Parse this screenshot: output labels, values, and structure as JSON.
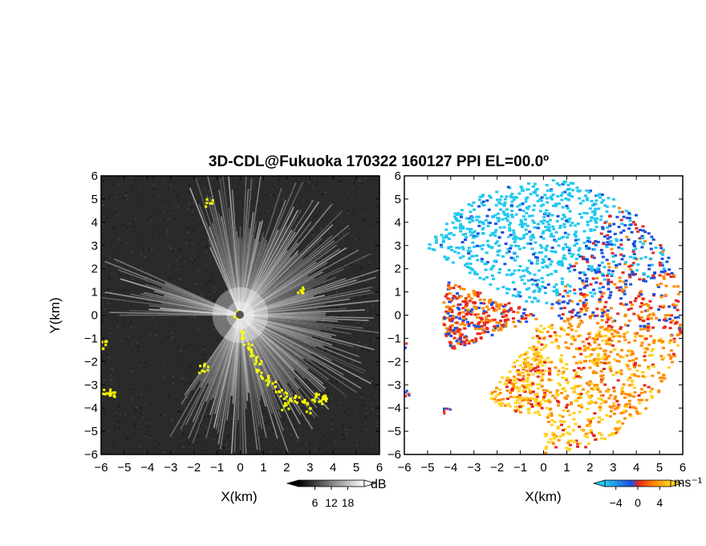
{
  "title": "3D-CDL@Fukuoka 170322 160127 PPI EL=00.0º",
  "chart_data": [
    {
      "type": "heatmap",
      "field": "intensity",
      "xlabel": "X(km)",
      "ylabel": "Y(km)",
      "xlim": [
        -6,
        6
      ],
      "ylim": [
        -6,
        6
      ],
      "xticks": [
        -6,
        -5,
        -4,
        -3,
        -2,
        -1,
        0,
        1,
        2,
        3,
        4,
        5,
        6
      ],
      "yticks": [
        -6,
        -5,
        -4,
        -3,
        -2,
        -1,
        0,
        1,
        2,
        3,
        4,
        5,
        6
      ],
      "xtick_labels": [
        "−6",
        "−5",
        "−4",
        "−3",
        "−2",
        "−1",
        "0",
        "1",
        "2",
        "3",
        "4",
        "5",
        "6"
      ],
      "ytick_labels": [
        "−6",
        "−5",
        "−4",
        "−3",
        "−2",
        "−1",
        "0",
        "1",
        "2",
        "3",
        "4",
        "5",
        "6"
      ],
      "background": "#2a2a2a",
      "echo_color": "#e8e8e8",
      "clutter_color": "#ffff00",
      "colorbar": {
        "unit": "dB",
        "ticks": [
          6,
          12,
          18
        ],
        "tick_labels": [
          "6",
          "12",
          "18"
        ],
        "range": [
          0,
          24
        ]
      }
    },
    {
      "type": "heatmap",
      "field": "radial_velocity",
      "xlabel": "X(km)",
      "xlim": [
        -6,
        6
      ],
      "ylim": [
        -6,
        6
      ],
      "xticks": [
        -6,
        -5,
        -4,
        -3,
        -2,
        -1,
        0,
        1,
        2,
        3,
        4,
        5,
        6
      ],
      "yticks": [
        -6,
        -5,
        -4,
        -3,
        -2,
        -1,
        0,
        1,
        2,
        3,
        4,
        5,
        6
      ],
      "xtick_labels": [
        "−6",
        "−5",
        "−4",
        "−3",
        "−2",
        "−1",
        "0",
        "1",
        "2",
        "3",
        "4",
        "5",
        "6"
      ],
      "ytick_labels": [
        "−6",
        "−5",
        "−4",
        "−3",
        "−2",
        "−1",
        "0",
        "1",
        "2",
        "3",
        "4",
        "5",
        "6"
      ],
      "colors": {
        "cyan": "#22c8f0",
        "blue": "#1a50e0",
        "red": "#e8281e",
        "orange": "#ff8c00",
        "yellow": "#ffd21e"
      },
      "colorbar": {
        "unit": "ms⁻¹",
        "ticks": [
          -4,
          0,
          4
        ],
        "tick_labels": [
          "−4",
          "0",
          "4"
        ],
        "range": [
          -6,
          6
        ]
      }
    }
  ]
}
